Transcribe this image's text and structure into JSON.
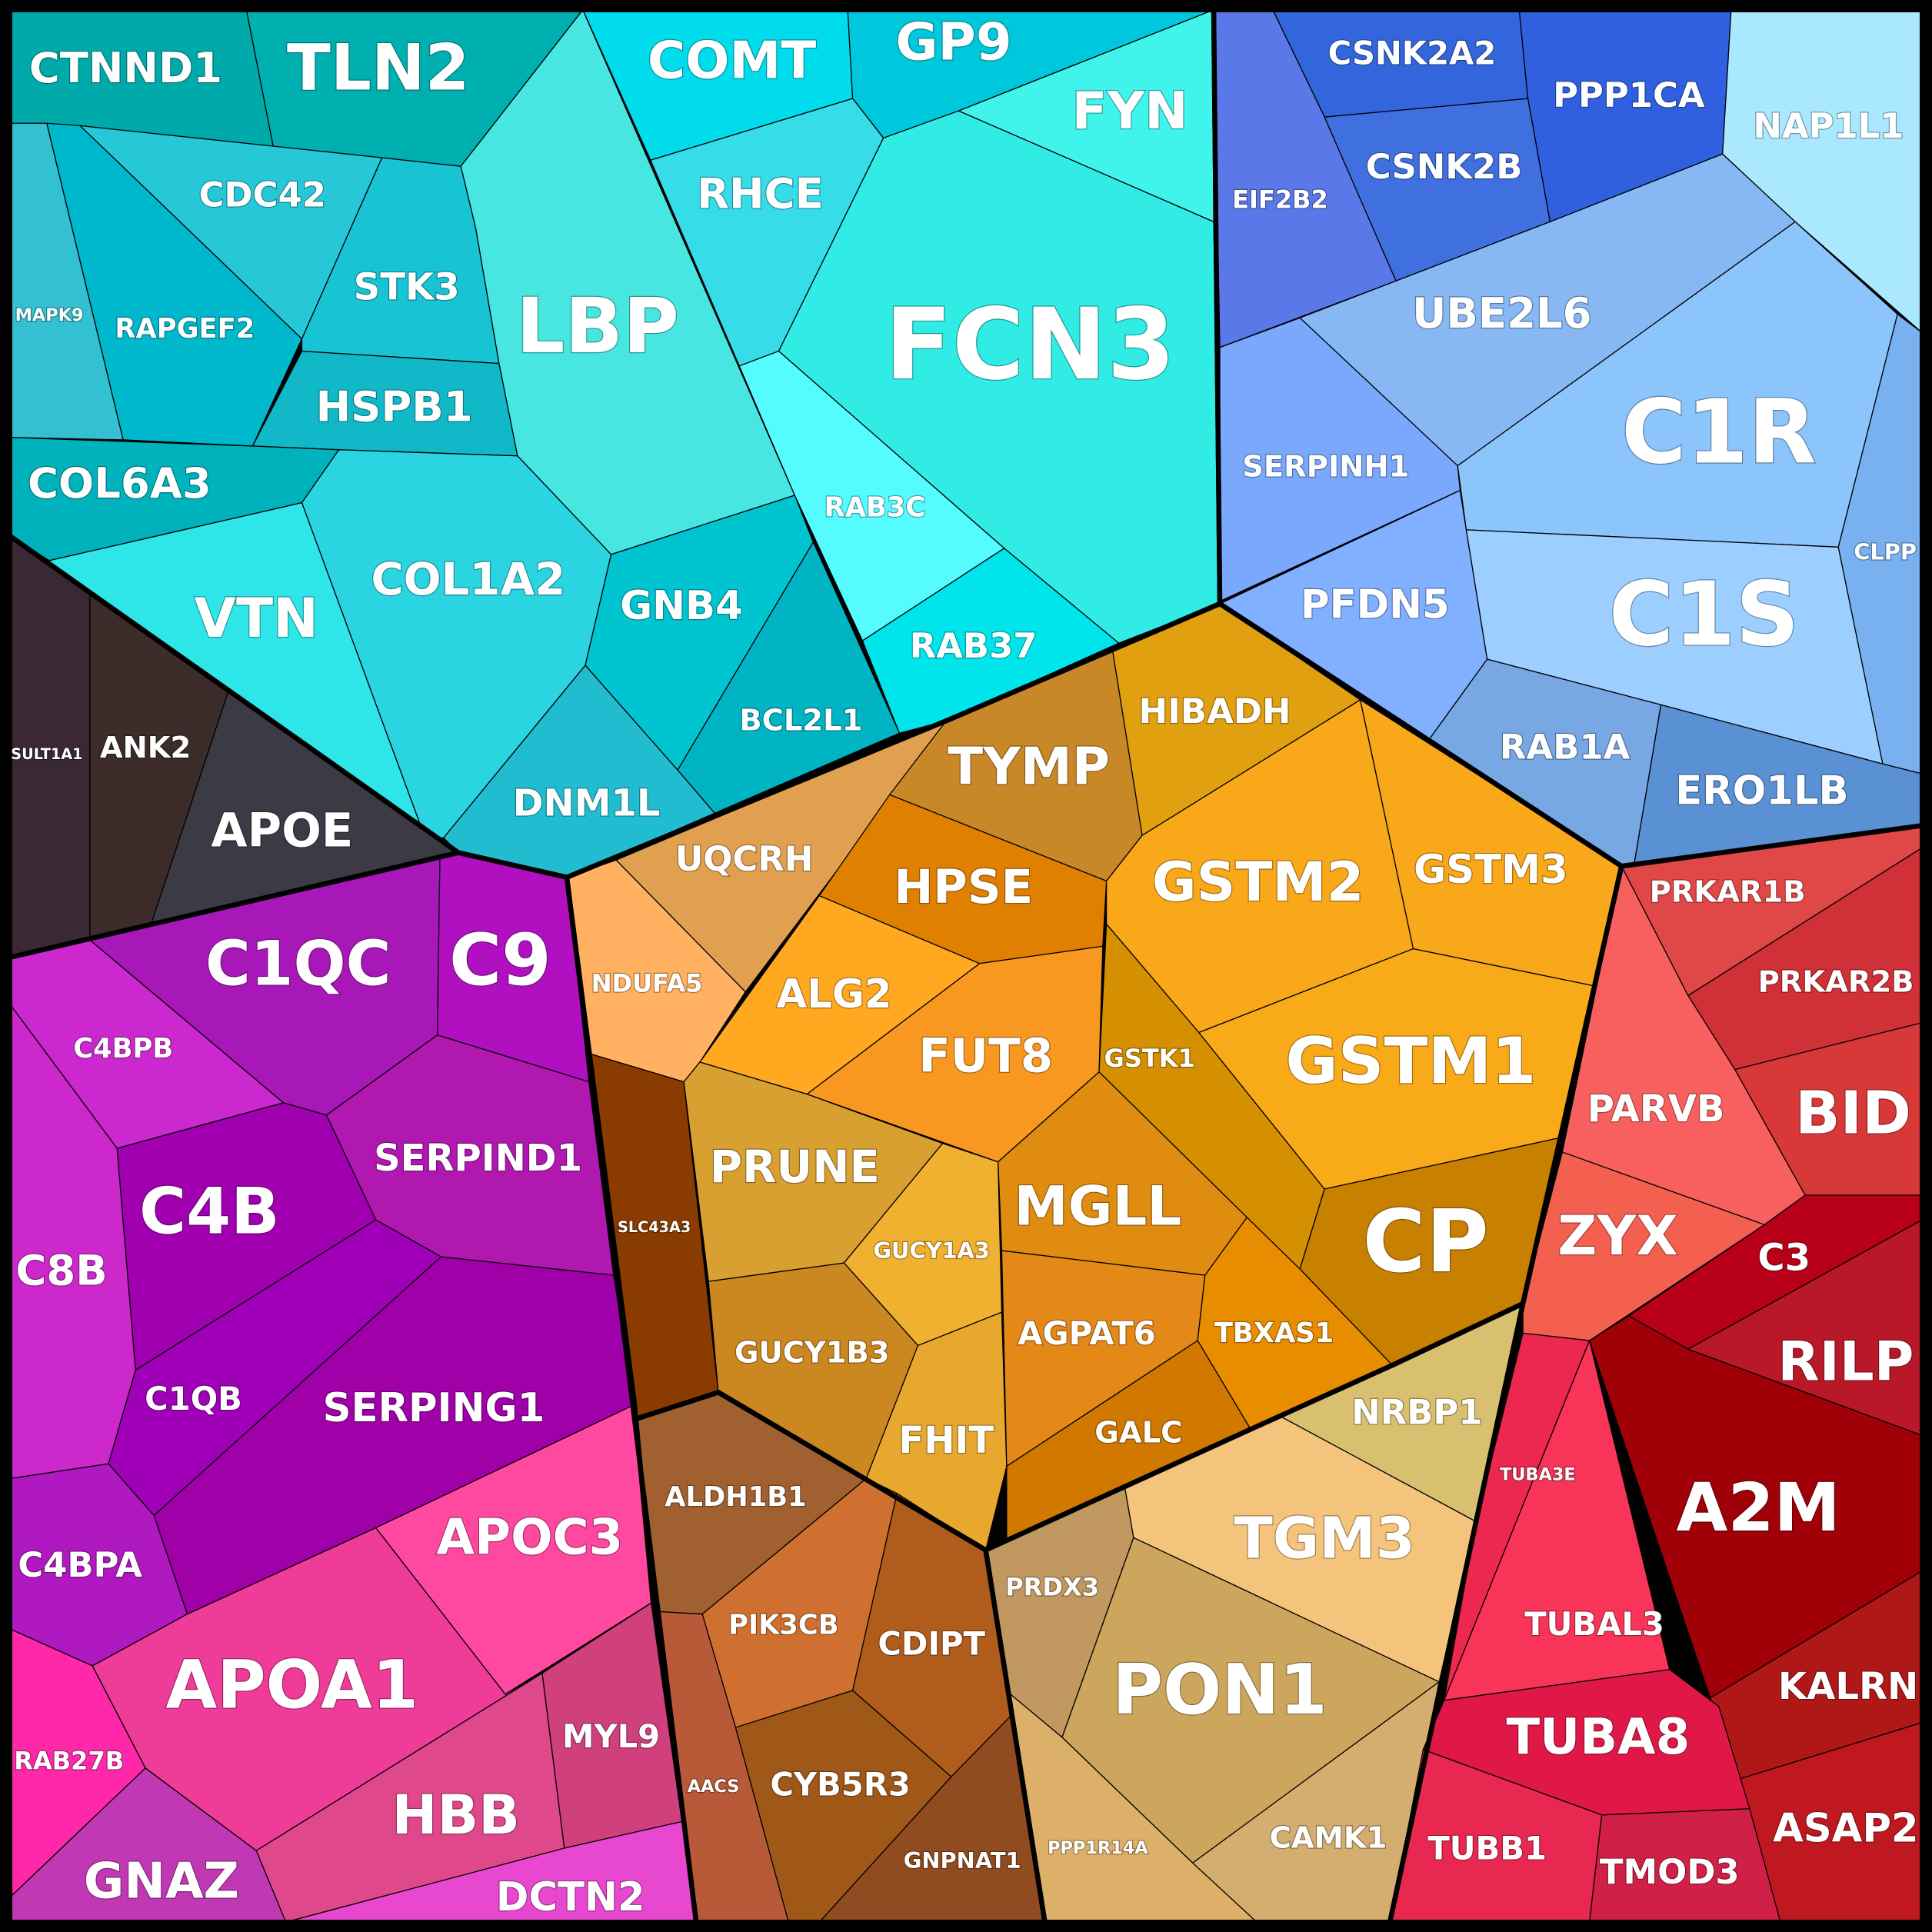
{
  "cells": [
    {
      "label": "CTNND1"
    },
    {
      "label": "TLN2"
    },
    {
      "label": "LBP"
    },
    {
      "label": "MAPK9"
    },
    {
      "label": "RAPGEF2"
    },
    {
      "label": "CDC42"
    },
    {
      "label": "STK3"
    },
    {
      "label": "HSPB1"
    },
    {
      "label": "COL6A3"
    },
    {
      "label": "VTN"
    },
    {
      "label": "COL1A2"
    },
    {
      "label": "GNB4"
    },
    {
      "label": "BCL2L1"
    },
    {
      "label": "DNM1L"
    },
    {
      "label": "COMT"
    },
    {
      "label": "GP9"
    },
    {
      "label": "FYN"
    },
    {
      "label": "RHCE"
    },
    {
      "label": "FCN3"
    },
    {
      "label": "RAB3C"
    },
    {
      "label": "RAB37"
    },
    {
      "label": "CSNK2A2"
    },
    {
      "label": "PPP1CA"
    },
    {
      "label": "NAP1L1"
    },
    {
      "label": "EIF2B2"
    },
    {
      "label": "CSNK2B"
    },
    {
      "label": "UBE2L6"
    },
    {
      "label": "C1R"
    },
    {
      "label": "SERPINH1"
    },
    {
      "label": "PFDN5"
    },
    {
      "label": "C1S"
    },
    {
      "label": "CLPP"
    },
    {
      "label": "RAB1A"
    },
    {
      "label": "ERO1LB"
    },
    {
      "label": "SULT1A1"
    },
    {
      "label": "ANK2"
    },
    {
      "label": "APOE"
    },
    {
      "label": "C1QC"
    },
    {
      "label": "C9"
    },
    {
      "label": "C4BPB"
    },
    {
      "label": "C8B"
    },
    {
      "label": "C4B"
    },
    {
      "label": "SERPIND1"
    },
    {
      "label": "C1QB"
    },
    {
      "label": "SERPING1"
    },
    {
      "label": "C4BPA"
    },
    {
      "label": "APOC3"
    },
    {
      "label": "APOA1"
    },
    {
      "label": "MYL9"
    },
    {
      "label": "HBB"
    },
    {
      "label": "RAB27B"
    },
    {
      "label": "GNAZ"
    },
    {
      "label": "DCTN2"
    },
    {
      "label": "UQCRH"
    },
    {
      "label": "TYMP"
    },
    {
      "label": "HIBADH"
    },
    {
      "label": "NDUFA5"
    },
    {
      "label": "HPSE"
    },
    {
      "label": "ALG2"
    },
    {
      "label": "FUT8"
    },
    {
      "label": "GSTM2"
    },
    {
      "label": "GSTM3"
    },
    {
      "label": "GSTK1"
    },
    {
      "label": "GSTM1"
    },
    {
      "label": "CP"
    },
    {
      "label": "SLC43A3"
    },
    {
      "label": "PRUNE"
    },
    {
      "label": "GUCY1A3"
    },
    {
      "label": "MGLL"
    },
    {
      "label": "GUCY1B3"
    },
    {
      "label": "FHIT"
    },
    {
      "label": "AGPAT6"
    },
    {
      "label": "TBXAS1"
    },
    {
      "label": "GALC"
    },
    {
      "label": "NRBP1"
    },
    {
      "label": "TGM3"
    },
    {
      "label": "PRDX3"
    },
    {
      "label": "PON1"
    },
    {
      "label": "CAMK1"
    },
    {
      "label": "PPP1R14A"
    },
    {
      "label": "ALDH1B1"
    },
    {
      "label": "PIK3CB"
    },
    {
      "label": "CDIPT"
    },
    {
      "label": "AACS"
    },
    {
      "label": "CYB5R3"
    },
    {
      "label": "GNPNAT1"
    },
    {
      "label": "PRKAR1B"
    },
    {
      "label": "PRKAR2B"
    },
    {
      "label": "BID"
    },
    {
      "label": "PARVB"
    },
    {
      "label": "ZYX"
    },
    {
      "label": "C3"
    },
    {
      "label": "RILP"
    },
    {
      "label": "A2M"
    },
    {
      "label": "KALRN"
    },
    {
      "label": "ASAP2"
    },
    {
      "label": "TUBA3E"
    },
    {
      "label": "TUBAL3"
    },
    {
      "label": "TUBA8"
    },
    {
      "label": "TUBB1"
    },
    {
      "label": "TMOD3"
    }
  ]
}
